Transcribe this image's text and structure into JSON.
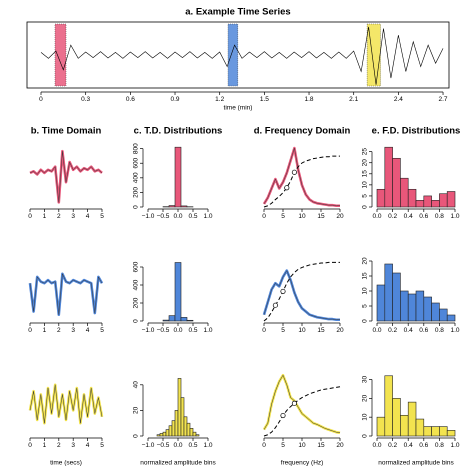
{
  "chart_data": [
    {
      "type": "line",
      "title": "a. Example Time Series",
      "xlabel": "time (min)",
      "frame": true,
      "color": "#000000",
      "xlim": [
        -0.094,
        2.74
      ],
      "ylim": [
        -1,
        1
      ],
      "xticks": [
        0,
        0.3,
        0.6,
        0.9,
        1.2,
        1.5,
        1.8,
        2.1,
        2.4,
        2.7
      ],
      "highlights": [
        {
          "color": "#e8577a",
          "range": [
            0.094,
            0.168
          ]
        },
        {
          "color": "#4f86d9",
          "range": [
            1.256,
            1.322
          ]
        },
        {
          "color": "#f2e34f",
          "range": [
            2.19,
            2.28
          ]
        }
      ],
      "x": [
        0,
        0.05,
        0.1,
        0.15,
        0.2,
        0.25,
        0.3,
        0.35,
        0.4,
        0.45,
        0.5,
        0.55,
        0.6,
        0.65,
        0.7,
        0.75,
        0.8,
        0.85,
        0.9,
        0.95,
        1,
        1.05,
        1.1,
        1.15,
        1.2,
        1.25,
        1.3,
        1.35,
        1.4,
        1.45,
        1.5,
        1.55,
        1.6,
        1.65,
        1.7,
        1.75,
        1.8,
        1.85,
        1.9,
        1.95,
        2,
        2.05,
        2.1,
        2.15,
        2.2,
        2.25,
        2.3,
        2.35,
        2.4,
        2.45,
        2.5,
        2.55,
        2.6,
        2.65,
        2.7
      ],
      "values": [
        0.08,
        -0.1,
        0.12,
        -0.45,
        0.3,
        -0.1,
        0.09,
        -0.08,
        0.1,
        -0.09,
        0.08,
        -0.1,
        0.09,
        -0.08,
        0.1,
        -0.09,
        0.08,
        -0.1,
        0.09,
        -0.08,
        0.1,
        -0.09,
        0.08,
        -0.1,
        0.09,
        -0.35,
        0.3,
        -0.1,
        0.09,
        -0.08,
        0.1,
        -0.09,
        0.08,
        -0.1,
        0.09,
        -0.08,
        0.1,
        -0.09,
        0.08,
        -0.1,
        0.09,
        -0.1,
        0.12,
        -0.5,
        0.85,
        -0.9,
        0.8,
        -0.7,
        0.6,
        -0.5,
        0.4,
        -0.35,
        0.3,
        -0.25,
        0.2
      ]
    },
    {
      "type": "line",
      "title": "b. Time Domain",
      "color": "#e8577a",
      "xlim": [
        0,
        5
      ],
      "ylim": [
        -1.1,
        0.9
      ],
      "xticks": [
        0,
        1,
        2,
        3,
        4,
        5
      ],
      "x": [
        0,
        0.25,
        0.5,
        0.75,
        1,
        1.25,
        1.5,
        1.75,
        2,
        2.25,
        2.5,
        2.75,
        3,
        3.25,
        3.5,
        3.75,
        4,
        4.25,
        4.5,
        4.75,
        5
      ],
      "values": [
        0.0,
        0.05,
        -0.05,
        0.1,
        0.0,
        0.1,
        0.05,
        0.2,
        -0.95,
        0.7,
        -0.3,
        0.35,
        0.1,
        0.2,
        0.05,
        0.15,
        0.1,
        0.2,
        0.05,
        0.1,
        0.0
      ]
    },
    {
      "type": "histogram",
      "title": "c. T.D. Distributions",
      "color": "#e8577a",
      "xlim": [
        -1,
        1
      ],
      "ylim": [
        0,
        850
      ],
      "xticks": [
        {
          "value": -1,
          "label": "−1.0"
        },
        {
          "value": -0.5,
          "label": "−0.5"
        },
        {
          "value": 0,
          "label": "0.0"
        },
        {
          "value": 0.5,
          "label": "0.5"
        },
        {
          "value": 1,
          "label": "1.0"
        }
      ],
      "yticks": [
        0,
        200,
        400,
        600,
        800
      ],
      "bins": [
        -0.5,
        -0.3,
        -0.1,
        0.1,
        0.3,
        0.5
      ],
      "values": [
        5,
        20,
        820,
        15,
        4
      ]
    },
    {
      "type": "spectrum",
      "title": "d. Frequency Domain",
      "color": "#e8577a",
      "xlim": [
        0,
        20
      ],
      "ylim": [
        0,
        1
      ],
      "xticks": [
        0,
        5,
        10,
        15,
        20
      ],
      "x": [
        0,
        1,
        2,
        3,
        4,
        5,
        6,
        7,
        8,
        9,
        10,
        11,
        12,
        13,
        14,
        15,
        16,
        17,
        18,
        19,
        20
      ],
      "values": [
        0.05,
        0.15,
        0.3,
        0.45,
        0.3,
        0.4,
        0.55,
        0.75,
        0.95,
        0.6,
        0.35,
        0.2,
        0.12,
        0.08,
        0.06,
        0.05,
        0.04,
        0.03,
        0.03,
        0.02,
        0.02
      ],
      "cumulative": [
        0,
        0.02,
        0.06,
        0.12,
        0.17,
        0.23,
        0.31,
        0.42,
        0.56,
        0.65,
        0.71,
        0.74,
        0.76,
        0.78,
        0.79,
        0.8,
        0.81,
        0.81,
        0.82,
        0.82,
        0.82
      ],
      "markers": {
        "x": [
          6,
          8
        ],
        "y": [
          0.31,
          0.56
        ]
      }
    },
    {
      "type": "histogram",
      "title": "e. F.D. Distributions",
      "color": "#e8577a",
      "xlim": [
        0,
        1
      ],
      "ylim": [
        0,
        28
      ],
      "xticks": [
        {
          "value": 0,
          "label": "0.0"
        },
        0.2,
        0.4,
        0.6,
        0.8,
        {
          "value": 1,
          "label": "1.0"
        }
      ],
      "yticks": [
        0,
        5,
        10,
        15,
        20,
        25
      ],
      "bins": [
        0,
        0.1,
        0.2,
        0.3,
        0.4,
        0.5,
        0.6,
        0.7,
        0.8,
        0.9,
        1
      ],
      "values": [
        8,
        27,
        22,
        13,
        8,
        3,
        5,
        3,
        6,
        7
      ]
    },
    {
      "type": "line",
      "color": "#4f86d9",
      "xlim": [
        0,
        5
      ],
      "ylim": [
        -1.1,
        0.9
      ],
      "xticks": [
        0,
        1,
        2,
        3,
        4,
        5
      ],
      "x": [
        0,
        0.25,
        0.5,
        0.75,
        1,
        1.25,
        1.5,
        1.75,
        2,
        2.25,
        2.5,
        2.75,
        3,
        3.25,
        3.5,
        3.75,
        4,
        4.25,
        4.5,
        4.75,
        5
      ],
      "values": [
        0.1,
        -0.8,
        0.3,
        0.15,
        0.1,
        0.2,
        0.1,
        0.15,
        -0.9,
        0.4,
        0.15,
        0.1,
        0.2,
        0.15,
        0.1,
        0.2,
        0.15,
        0.1,
        -0.85,
        0.3,
        0.1
      ]
    },
    {
      "type": "histogram",
      "color": "#4f86d9",
      "xlim": [
        -1,
        1
      ],
      "ylim": [
        0,
        700
      ],
      "xticks": [
        {
          "value": -1,
          "label": "−1.0"
        },
        {
          "value": -0.5,
          "label": "−0.5"
        },
        {
          "value": 0,
          "label": "0.0"
        },
        {
          "value": 0.5,
          "label": "0.5"
        },
        {
          "value": 1,
          "label": "1.0"
        }
      ],
      "yticks": [
        0,
        200,
        400,
        600
      ],
      "bins": [
        -0.5,
        -0.3,
        -0.1,
        0.1,
        0.3,
        0.5
      ],
      "values": [
        10,
        60,
        650,
        40,
        8
      ]
    },
    {
      "type": "spectrum",
      "color": "#4f86d9",
      "xlim": [
        0,
        20
      ],
      "ylim": [
        0,
        1
      ],
      "xticks": [
        0,
        5,
        10,
        15,
        20
      ],
      "x": [
        0,
        1,
        2,
        3,
        4,
        5,
        6,
        7,
        8,
        9,
        10,
        11,
        12,
        13,
        14,
        15,
        16,
        17,
        18,
        19,
        20
      ],
      "values": [
        0.1,
        0.3,
        0.5,
        0.6,
        0.55,
        0.7,
        0.8,
        0.65,
        0.45,
        0.3,
        0.2,
        0.15,
        0.1,
        0.08,
        0.06,
        0.05,
        0.04,
        0.03,
        0.03,
        0.02,
        0.02
      ],
      "cumulative": [
        0,
        0.05,
        0.14,
        0.25,
        0.35,
        0.47,
        0.6,
        0.7,
        0.77,
        0.82,
        0.85,
        0.87,
        0.89,
        0.9,
        0.91,
        0.92,
        0.92,
        0.93,
        0.93,
        0.93,
        0.93
      ],
      "markers": {
        "x": [
          3,
          5
        ],
        "y": [
          0.25,
          0.47
        ]
      }
    },
    {
      "type": "histogram",
      "color": "#4f86d9",
      "xlim": [
        0,
        1
      ],
      "ylim": [
        0,
        21
      ],
      "xticks": [
        {
          "value": 0,
          "label": "0.0"
        },
        0.2,
        0.4,
        0.6,
        0.8,
        {
          "value": 1,
          "label": "1.0"
        }
      ],
      "yticks": [
        0,
        5,
        10,
        15,
        20
      ],
      "bins": [
        0,
        0.1,
        0.2,
        0.3,
        0.4,
        0.5,
        0.6,
        0.7,
        0.8,
        0.9,
        1
      ],
      "values": [
        12,
        19,
        16,
        10,
        9,
        10,
        8,
        6,
        4,
        2
      ]
    },
    {
      "type": "line",
      "xlabel": "time (secs)",
      "color": "#f2e34f",
      "xlim": [
        0,
        5
      ],
      "ylim": [
        -1,
        1
      ],
      "xticks": [
        0,
        1,
        2,
        3,
        4,
        5
      ],
      "x": [
        0,
        0.25,
        0.5,
        0.75,
        1,
        1.25,
        1.5,
        1.75,
        2,
        2.25,
        2.5,
        2.75,
        3,
        3.25,
        3.5,
        3.75,
        4,
        4.25,
        4.5,
        4.75,
        5
      ],
      "values": [
        -0.2,
        0.4,
        -0.5,
        0.3,
        -0.6,
        0.5,
        -0.3,
        0.6,
        -0.4,
        0.3,
        -0.5,
        0.4,
        -0.2,
        0.5,
        -0.6,
        0.3,
        -0.4,
        0.5,
        -0.3,
        0.2,
        -0.4
      ]
    },
    {
      "type": "histogram",
      "xlabel": "normalized amplitude bins",
      "color": "#f2e34f",
      "xlim": [
        -1,
        1
      ],
      "ylim": [
        0,
        50
      ],
      "xticks": [
        {
          "value": -1,
          "label": "−1.0"
        },
        {
          "value": -0.5,
          "label": "−0.5"
        },
        {
          "value": 0,
          "label": "0.0"
        },
        {
          "value": 0.5,
          "label": "0.5"
        },
        {
          "value": 1,
          "label": "1.0"
        }
      ],
      "yticks": [
        0,
        20,
        40
      ],
      "bins": [
        -0.7,
        -0.6,
        -0.5,
        -0.4,
        -0.3,
        -0.2,
        -0.1,
        0,
        0.1,
        0.2,
        0.3,
        0.4,
        0.5,
        0.6,
        0.7
      ],
      "values": [
        1,
        2,
        3,
        5,
        8,
        12,
        20,
        45,
        30,
        15,
        10,
        6,
        3,
        1
      ]
    },
    {
      "type": "spectrum",
      "xlabel": "frequency (Hz)",
      "color": "#f2e34f",
      "xlim": [
        0,
        20
      ],
      "ylim": [
        0,
        1
      ],
      "xticks": [
        0,
        5,
        10,
        15,
        20
      ],
      "x": [
        0,
        1,
        2,
        3,
        4,
        5,
        6,
        7,
        8,
        9,
        10,
        11,
        12,
        13,
        14,
        15,
        16,
        17,
        18,
        19,
        20
      ],
      "values": [
        0.1,
        0.2,
        0.5,
        0.7,
        0.85,
        0.95,
        0.8,
        0.6,
        0.55,
        0.45,
        0.35,
        0.3,
        0.25,
        0.2,
        0.18,
        0.15,
        0.12,
        0.1,
        0.08,
        0.06,
        0.05
      ],
      "cumulative": [
        0,
        0.02,
        0.06,
        0.13,
        0.22,
        0.32,
        0.4,
        0.46,
        0.51,
        0.56,
        0.6,
        0.63,
        0.66,
        0.68,
        0.7,
        0.72,
        0.73,
        0.74,
        0.75,
        0.76,
        0.77
      ],
      "markers": {
        "x": [
          5,
          8
        ],
        "y": [
          0.32,
          0.51
        ]
      }
    },
    {
      "type": "histogram",
      "xlabel": "normalized amplitude bins",
      "color": "#f2e34f",
      "xlim": [
        0,
        1
      ],
      "ylim": [
        0,
        34
      ],
      "xticks": [
        {
          "value": 0,
          "label": "0.0"
        },
        0.2,
        0.4,
        0.6,
        0.8,
        {
          "value": 1,
          "label": "1.0"
        }
      ],
      "yticks": [
        0,
        10,
        20,
        30
      ],
      "bins": [
        0,
        0.1,
        0.2,
        0.3,
        0.4,
        0.5,
        0.6,
        0.7,
        0.8,
        0.9,
        1
      ],
      "values": [
        10,
        32,
        20,
        11,
        18,
        9,
        5,
        5,
        5,
        3
      ]
    }
  ]
}
